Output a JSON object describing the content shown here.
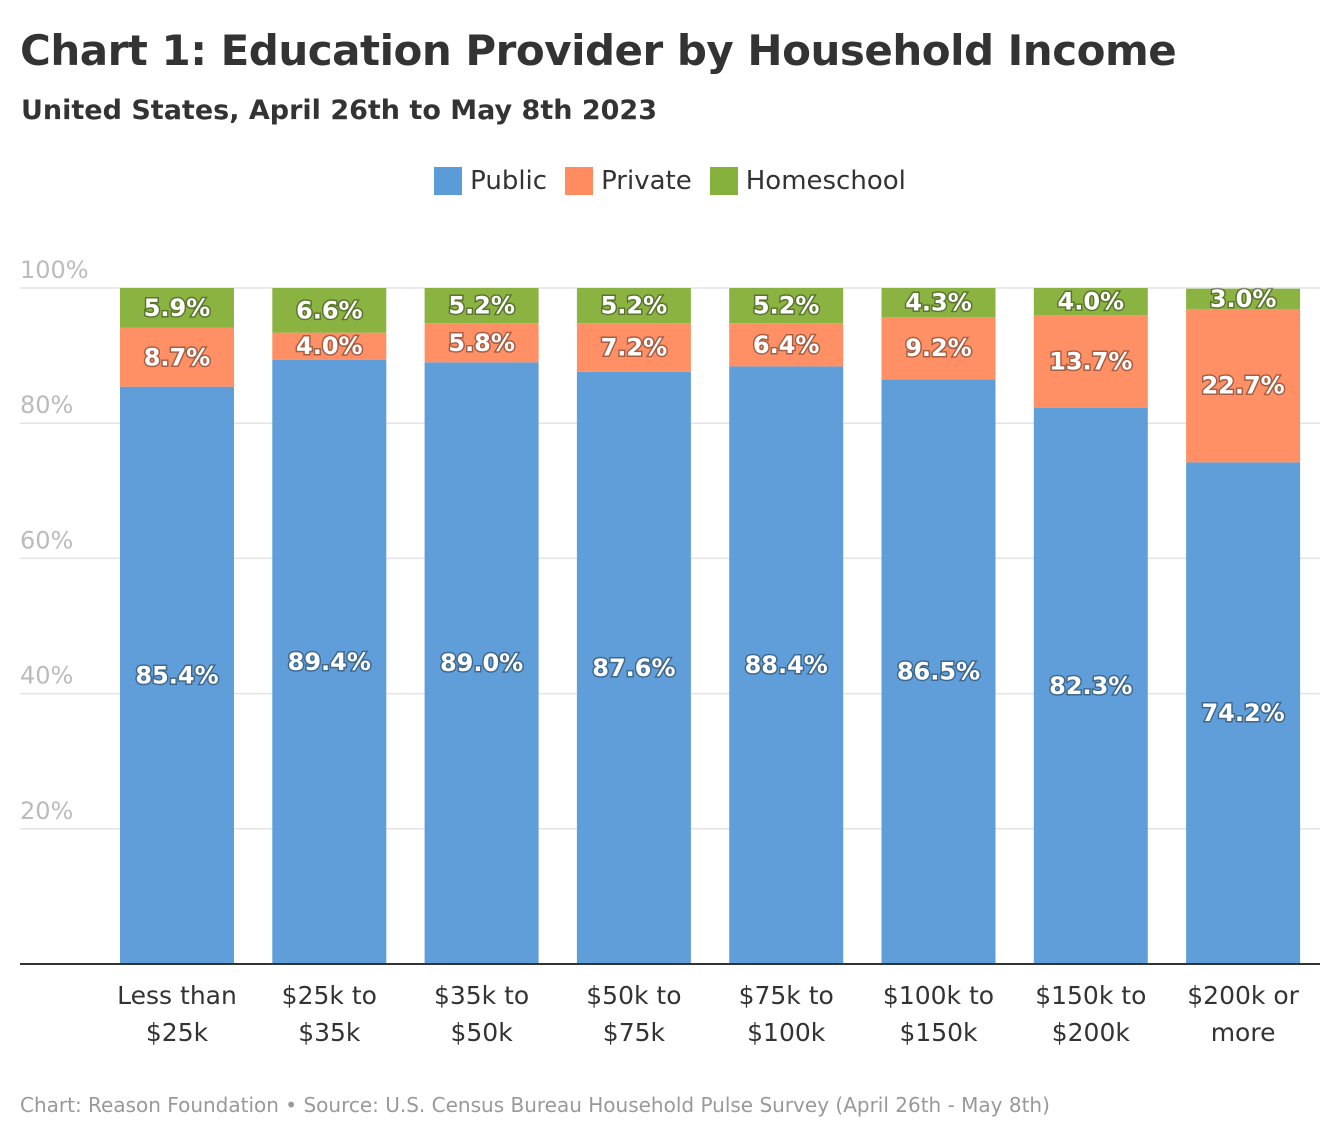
{
  "title": "Chart 1: Education Provider by Household Income",
  "subtitle": "United States, April 26th to May 8th 2023",
  "footer": "Chart: Reason Foundation • Source: U.S. Census Bureau Household Pulse Survey (April 26th - May 8th)",
  "chart_data": {
    "type": "bar",
    "stacked": true,
    "title": "Chart 1: Education Provider by Household Income",
    "subtitle": "United States, April 26th to May 8th 2023",
    "categories": [
      [
        "Less than",
        "$25k"
      ],
      [
        "$25k to",
        "$35k"
      ],
      [
        "$35k to",
        "$50k"
      ],
      [
        "$50k to",
        "$75k"
      ],
      [
        "$75k to",
        "$100k"
      ],
      [
        "$100k to",
        "$150k"
      ],
      [
        "$150k to",
        "$200k"
      ],
      [
        "$200k or",
        "more"
      ]
    ],
    "series": [
      {
        "name": "Public",
        "color": "#5b9bd8",
        "values": [
          85.4,
          89.4,
          89.0,
          87.6,
          88.4,
          86.5,
          82.3,
          74.2
        ]
      },
      {
        "name": "Private",
        "color": "#ff8c61",
        "values": [
          8.7,
          4.0,
          5.8,
          7.2,
          6.4,
          9.2,
          13.7,
          22.7
        ]
      },
      {
        "name": "Homeschool",
        "color": "#86b13c",
        "values": [
          5.9,
          6.6,
          5.2,
          5.2,
          5.2,
          4.3,
          4.0,
          3.0
        ]
      }
    ],
    "yticks": [
      "20%",
      "40%",
      "60%",
      "80%",
      "100%"
    ],
    "ytick_values": [
      20,
      40,
      60,
      80,
      100
    ],
    "ylim": [
      0,
      100
    ],
    "grid": true,
    "legend": "top-center"
  }
}
